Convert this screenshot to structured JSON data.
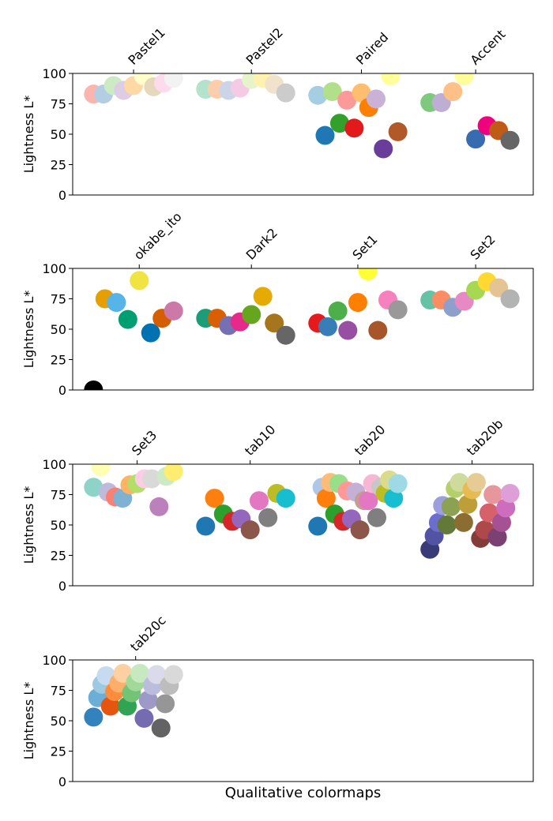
{
  "chart_data": [
    {
      "type": "scatter",
      "ylabel": "Lightness L*",
      "ylim": [
        0,
        100
      ],
      "yticks": [
        0,
        25,
        50,
        75,
        100
      ],
      "xlim": [
        -0.26,
        5.49
      ],
      "xticks": [
        {
          "value": 0.5,
          "label": "Pastel1"
        },
        {
          "value": 1.971,
          "label": "Pastel2"
        },
        {
          "value": 3.345,
          "label": "Paired"
        },
        {
          "value": 4.771,
          "label": "Accent"
        }
      ],
      "series": [
        {
          "x": [
            0,
            0.125,
            0.25,
            0.375,
            0.5,
            0.625,
            0.75,
            0.875,
            1
          ],
          "values": [
            83,
            83,
            90,
            86,
            90,
            98,
            89,
            92,
            96
          ],
          "colors": [
            "#fbb4ae",
            "#b3cde3",
            "#ccebc5",
            "#decbe4",
            "#fed9a6",
            "#ffffcc",
            "#e5d8bd",
            "#fddaec",
            "#f2f2f2"
          ]
        },
        {
          "x": [
            1.4,
            1.543,
            1.686,
            1.829,
            1.971,
            2.114,
            2.257,
            2.4
          ],
          "values": [
            87,
            87,
            86,
            88,
            95,
            96,
            91,
            84
          ],
          "colors": [
            "#b3e2cd",
            "#fdcdac",
            "#cbd5e8",
            "#f4cae4",
            "#e6f5c9",
            "#fff2ae",
            "#f1e2cc",
            "#cccccc"
          ]
        },
        {
          "x": [
            2.8,
            2.891,
            2.982,
            3.073,
            3.164,
            3.255,
            3.345,
            3.436,
            3.527,
            3.618,
            3.709,
            3.8
          ],
          "values": [
            82,
            49,
            85,
            59,
            78,
            55,
            84,
            72,
            79,
            38,
            98,
            52
          ],
          "colors": [
            "#a6cee3",
            "#1f78b4",
            "#b2df8a",
            "#33a02c",
            "#fb9a99",
            "#e31a1c",
            "#fdbf6f",
            "#ff7f00",
            "#cab2d6",
            "#6a3d9a",
            "#ffff99",
            "#b15928"
          ]
        },
        {
          "x": [
            4.2,
            4.343,
            4.486,
            4.629,
            4.771,
            4.914,
            5.057,
            5.2
          ],
          "values": [
            76,
            76,
            85,
            98,
            46,
            57,
            53,
            45
          ],
          "colors": [
            "#7fc97f",
            "#beaed4",
            "#fdc086",
            "#ffff99",
            "#386cb0",
            "#f0027f",
            "#bf5b17",
            "#666666"
          ]
        }
      ]
    },
    {
      "type": "scatter",
      "ylabel": "Lightness L*",
      "ylim": [
        0,
        100
      ],
      "yticks": [
        0,
        25,
        50,
        75,
        100
      ],
      "xlim": [
        -0.26,
        5.49
      ],
      "xticks": [
        {
          "value": 0.571,
          "label": "okabe_ito"
        },
        {
          "value": 1.971,
          "label": "Dark2"
        },
        {
          "value": 3.3,
          "label": "Set1"
        },
        {
          "value": 4.771,
          "label": "Set2"
        }
      ],
      "series": [
        {
          "x": [
            0,
            0.143,
            0.286,
            0.429,
            0.571,
            0.714,
            0.857,
            1
          ],
          "values": [
            0,
            75,
            72,
            58,
            90,
            47,
            59,
            65
          ],
          "colors": [
            "#000000",
            "#e69f00",
            "#56b4e9",
            "#009e73",
            "#f0e442",
            "#0072b2",
            "#d55e00",
            "#cc79a7"
          ]
        },
        {
          "x": [
            1.4,
            1.543,
            1.686,
            1.829,
            1.971,
            2.114,
            2.257,
            2.4
          ],
          "values": [
            59,
            59,
            53,
            56,
            62,
            77,
            55,
            45
          ],
          "colors": [
            "#1b9e77",
            "#d95f02",
            "#7570b3",
            "#e7298a",
            "#66a61e",
            "#e6ab02",
            "#a6761d",
            "#666666"
          ]
        },
        {
          "x": [
            2.8,
            2.925,
            3.05,
            3.175,
            3.3,
            3.425,
            3.55,
            3.675,
            3.8
          ],
          "values": [
            55,
            52,
            65,
            49,
            72,
            98,
            49,
            74,
            66
          ],
          "colors": [
            "#e41a1c",
            "#377eb8",
            "#4daf4a",
            "#984ea3",
            "#ff7f00",
            "#ffff33",
            "#a65628",
            "#f781bf",
            "#999999"
          ]
        },
        {
          "x": [
            4.2,
            4.343,
            4.486,
            4.629,
            4.771,
            4.914,
            5.057,
            5.2
          ],
          "values": [
            74,
            74,
            68,
            73,
            82,
            89,
            84,
            75
          ],
          "colors": [
            "#66c2a5",
            "#fc8d62",
            "#8da0cb",
            "#e78ac3",
            "#a6d854",
            "#ffd92f",
            "#e5c494",
            "#b3b3b3"
          ]
        }
      ]
    },
    {
      "type": "scatter",
      "ylabel": "Lightness L*",
      "ylim": [
        0,
        100
      ],
      "yticks": [
        0,
        25,
        50,
        75,
        100
      ],
      "xlim": [
        -0.26,
        5.49
      ],
      "xticks": [
        {
          "value": 0.545,
          "label": "Set3"
        },
        {
          "value": 1.956,
          "label": "tab10"
        },
        {
          "value": 3.326,
          "label": "tab20"
        },
        {
          "value": 4.726,
          "label": "tab20b"
        }
      ],
      "series": [
        {
          "x": [
            0,
            0.091,
            0.182,
            0.273,
            0.364,
            0.455,
            0.545,
            0.636,
            0.727,
            0.818,
            0.909,
            1
          ],
          "values": [
            81,
            98,
            77,
            73,
            72,
            83,
            84,
            88,
            88,
            65,
            90,
            94
          ],
          "colors": [
            "#8dd3c7",
            "#ffffb3",
            "#bebada",
            "#fb8072",
            "#80b1d3",
            "#fdb462",
            "#b3de69",
            "#fccde5",
            "#d9d9d9",
            "#bc80bd",
            "#ccebc5",
            "#ffed6f"
          ]
        },
        {
          "x": [
            1.4,
            1.511,
            1.622,
            1.733,
            1.844,
            1.956,
            2.067,
            2.178,
            2.289,
            2.4
          ],
          "values": [
            49,
            72,
            59,
            53,
            55,
            46,
            70,
            56,
            76,
            72
          ],
          "colors": [
            "#1f77b4",
            "#ff7f0e",
            "#2ca02c",
            "#d62728",
            "#9467bd",
            "#8c564b",
            "#e377c2",
            "#7f7f7f",
            "#bcbd22",
            "#17becf"
          ]
        },
        {
          "x": [
            2.8,
            2.853,
            2.905,
            2.958,
            3.011,
            3.063,
            3.116,
            3.168,
            3.221,
            3.274,
            3.326,
            3.379,
            3.432,
            3.484,
            3.537,
            3.589,
            3.642,
            3.695,
            3.747,
            3.8
          ],
          "values": [
            49,
            81,
            72,
            85,
            59,
            84,
            53,
            78,
            55,
            77,
            46,
            70,
            70,
            84,
            56,
            81,
            76,
            87,
            72,
            84
          ],
          "colors": [
            "#1f77b4",
            "#aec7e8",
            "#ff7f0e",
            "#ffbb78",
            "#2ca02c",
            "#98df8a",
            "#d62728",
            "#ff9896",
            "#9467bd",
            "#c5b0d5",
            "#8c564b",
            "#c49c94",
            "#e377c2",
            "#f7b6d2",
            "#7f7f7f",
            "#c7c7c7",
            "#bcbd22",
            "#dbdb8d",
            "#17becf",
            "#9edae5"
          ]
        },
        {
          "x": [
            4.2,
            4.253,
            4.305,
            4.358,
            4.411,
            4.463,
            4.516,
            4.568,
            4.621,
            4.674,
            4.726,
            4.779,
            4.832,
            4.884,
            4.937,
            4.989,
            5.042,
            5.095,
            5.147,
            5.2
          ],
          "values": [
            30,
            41,
            52,
            66,
            50,
            65,
            80,
            85,
            52,
            67,
            79,
            85,
            39,
            46,
            60,
            75,
            40,
            52,
            64,
            76
          ],
          "colors": [
            "#393b79",
            "#5254a3",
            "#6b6ecf",
            "#9c9ede",
            "#637939",
            "#8ca252",
            "#b5cf6b",
            "#cedb9c",
            "#8c6d31",
            "#bd9e39",
            "#e7ba52",
            "#e7cb94",
            "#843c39",
            "#ad494a",
            "#d6616b",
            "#e7969c",
            "#7b4173",
            "#a55194",
            "#ce6dbd",
            "#de9ed6"
          ]
        }
      ]
    },
    {
      "type": "scatter",
      "ylabel": "Lightness L*",
      "xlabel": "Qualitative colormaps",
      "ylim": [
        0,
        100
      ],
      "yticks": [
        0,
        25,
        50,
        75,
        100
      ],
      "xlim": [
        -0.26,
        5.49
      ],
      "xticks": [
        {
          "value": 0.526,
          "label": "tab20c"
        }
      ],
      "series": [
        {
          "x": [
            0,
            0.053,
            0.105,
            0.158,
            0.211,
            0.263,
            0.316,
            0.368,
            0.421,
            0.474,
            0.526,
            0.579,
            0.632,
            0.684,
            0.737,
            0.789,
            0.842,
            0.895,
            0.947,
            1
          ],
          "values": [
            53,
            69,
            80,
            87,
            62,
            74,
            81,
            89,
            62,
            73,
            82,
            89,
            52,
            67,
            79,
            88,
            44,
            64,
            79,
            88
          ],
          "colors": [
            "#3182bd",
            "#6baed6",
            "#9ecae1",
            "#c6dbef",
            "#e6550d",
            "#fd8d3c",
            "#fdae6b",
            "#fdd0a2",
            "#31a354",
            "#74c476",
            "#a1d99b",
            "#c7e9c0",
            "#756bb1",
            "#9e9ac8",
            "#bcbddc",
            "#dadaeb",
            "#636363",
            "#969696",
            "#bdbdbd",
            "#d9d9d9"
          ]
        }
      ]
    }
  ]
}
